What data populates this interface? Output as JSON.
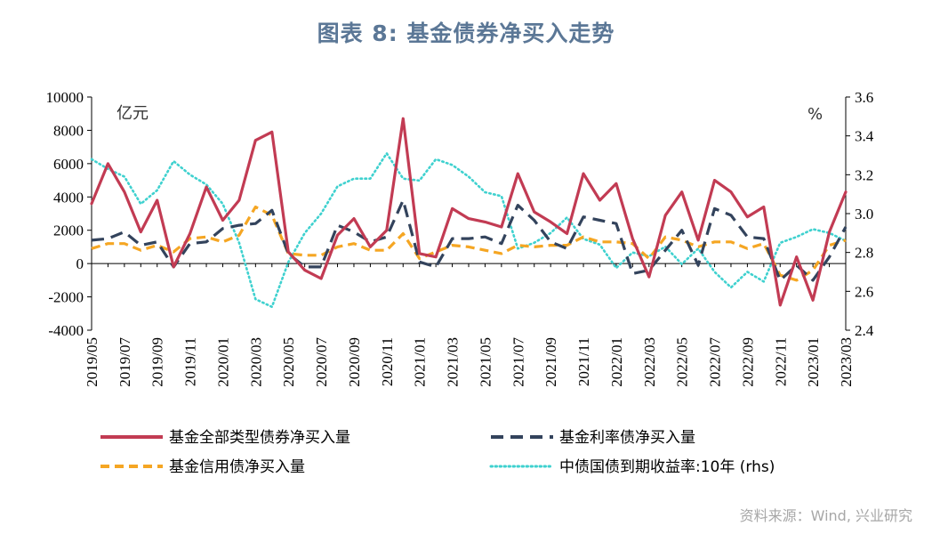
{
  "title": "图表 8:  基金债券净买入走势",
  "source": "资料来源：Wind, 兴业研究",
  "colors": {
    "total": "#c23b53",
    "rate": "#33435c",
    "credit": "#f5a623",
    "yield": "#3fd1cf",
    "title": "#5b7796"
  },
  "chart_data": {
    "type": "line",
    "left_unit": "亿元",
    "right_unit": "%",
    "ylim_left": [
      -4000,
      10000
    ],
    "ylim_right": [
      2.4,
      3.6
    ],
    "yticks_left": [
      "10000",
      "8000",
      "6000",
      "4000",
      "2000",
      "0",
      "-2000",
      "-4000"
    ],
    "yticks_right": [
      "3.6",
      "3.4",
      "3.2",
      "3.0",
      "2.8",
      "2.6",
      "2.4"
    ],
    "x": [
      "2019/05",
      "2019/06",
      "2019/07",
      "2019/08",
      "2019/09",
      "2019/10",
      "2019/11",
      "2019/12",
      "2020/01",
      "2020/02",
      "2020/03",
      "2020/04",
      "2020/05",
      "2020/06",
      "2020/07",
      "2020/08",
      "2020/09",
      "2020/10",
      "2020/11",
      "2020/12",
      "2021/01",
      "2021/02",
      "2021/03",
      "2021/04",
      "2021/05",
      "2021/06",
      "2021/07",
      "2021/08",
      "2021/09",
      "2021/10",
      "2021/11",
      "2021/12",
      "2022/01",
      "2022/02",
      "2022/03",
      "2022/04",
      "2022/05",
      "2022/06",
      "2022/07",
      "2022/08",
      "2022/09",
      "2022/10",
      "2022/11",
      "2022/12",
      "2023/01",
      "2023/02",
      "2023/03"
    ],
    "xtick_labels": [
      "2019/05",
      "2019/07",
      "2019/09",
      "2019/11",
      "2020/01",
      "2020/03",
      "2020/05",
      "2020/07",
      "2020/09",
      "2020/11",
      "2021/01",
      "2021/03",
      "2021/05",
      "2021/07",
      "2021/09",
      "2021/11",
      "2022/01",
      "2022/03",
      "2022/05",
      "2022/07",
      "2022/09",
      "2022/11",
      "2023/01",
      "2023/03"
    ],
    "series": [
      {
        "name": "基金全部类型债券净买入量",
        "axis": "left",
        "style": "solid",
        "values": [
          3600,
          6000,
          4300,
          1900,
          3800,
          -200,
          1800,
          4600,
          2600,
          3800,
          7400,
          7900,
          700,
          -400,
          -900,
          1700,
          2700,
          1000,
          2000,
          8700,
          600,
          400,
          3300,
          2700,
          2500,
          2200,
          5400,
          3100,
          2500,
          1800,
          5400,
          3800,
          4800,
          1500,
          -800,
          2900,
          4300,
          1400,
          5000,
          4300,
          2800,
          3400,
          -2500,
          400,
          -2200,
          1900,
          4300
        ]
      },
      {
        "name": "基金利率债净买入量",
        "axis": "left",
        "style": "dash",
        "values": [
          1400,
          1500,
          1900,
          1100,
          1300,
          -200,
          1200,
          1300,
          2100,
          2300,
          2400,
          3200,
          600,
          -200,
          -200,
          2300,
          1900,
          1300,
          1600,
          3800,
          100,
          -200,
          1500,
          1500,
          1600,
          1200,
          3500,
          2600,
          1300,
          900,
          2800,
          2600,
          2400,
          -600,
          -400,
          800,
          2000,
          -100,
          3300,
          2900,
          1600,
          1500,
          -1000,
          -100,
          -1000,
          400,
          2200
        ]
      },
      {
        "name": "基金信用债净买入量",
        "axis": "left",
        "style": "dash",
        "values": [
          900,
          1200,
          1200,
          800,
          1100,
          700,
          1500,
          1600,
          1300,
          1700,
          3400,
          2900,
          600,
          500,
          500,
          1000,
          1200,
          800,
          800,
          1800,
          300,
          700,
          1100,
          1000,
          800,
          600,
          1100,
          1000,
          1100,
          1100,
          1600,
          1300,
          1300,
          1200,
          300,
          1600,
          1400,
          1000,
          1300,
          1300,
          900,
          1200,
          -700,
          -1000,
          -400,
          1100,
          1400
        ]
      },
      {
        "name": "中债国债到期收益率:10年 (rhs)",
        "axis": "right",
        "style": "dot",
        "values": [
          3.28,
          3.23,
          3.19,
          3.05,
          3.12,
          3.27,
          3.2,
          3.15,
          3.05,
          2.85,
          2.56,
          2.52,
          2.75,
          2.9,
          3.0,
          3.14,
          3.18,
          3.18,
          3.31,
          3.18,
          3.17,
          3.28,
          3.25,
          3.19,
          3.11,
          3.09,
          2.82,
          2.85,
          2.9,
          2.98,
          2.87,
          2.84,
          2.72,
          2.8,
          2.78,
          2.83,
          2.74,
          2.82,
          2.7,
          2.62,
          2.7,
          2.65,
          2.85,
          2.88,
          2.92,
          2.9,
          2.86
        ]
      }
    ]
  }
}
